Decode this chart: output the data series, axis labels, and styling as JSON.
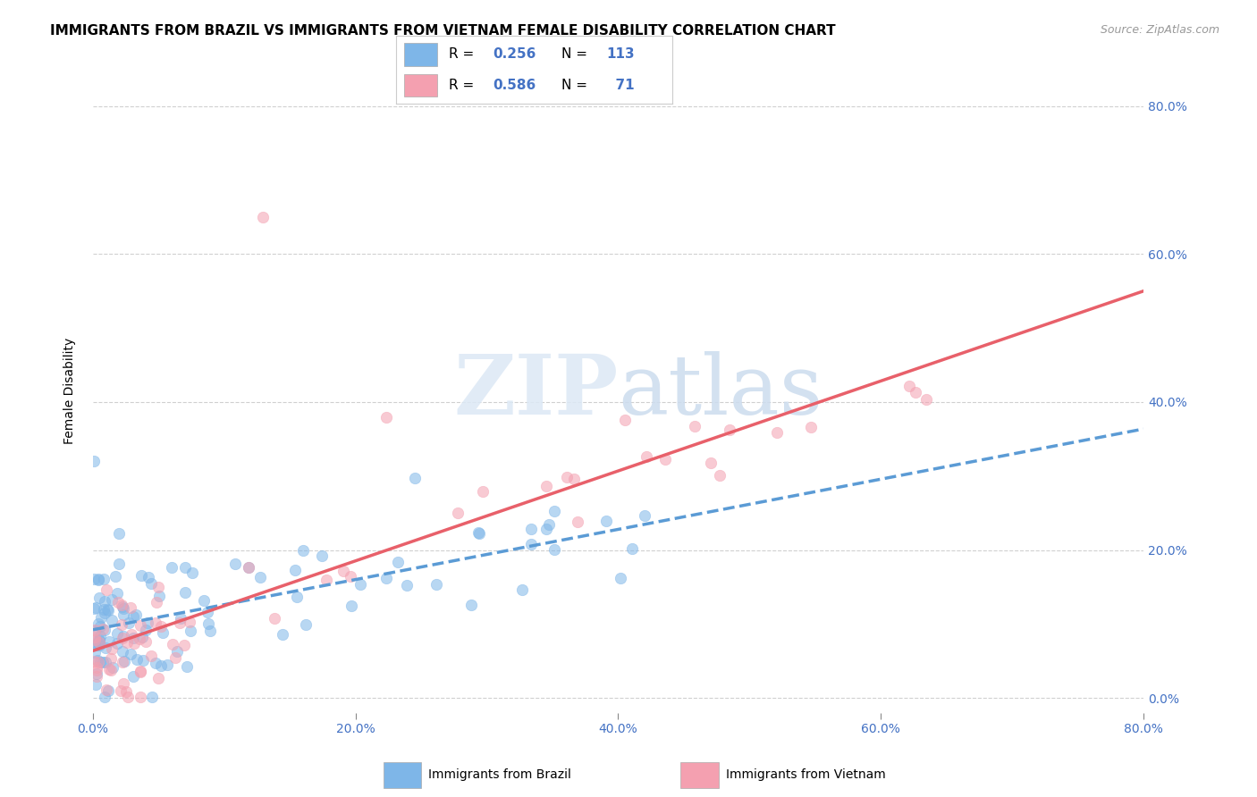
{
  "title": "IMMIGRANTS FROM BRAZIL VS IMMIGRANTS FROM VIETNAM FEMALE DISABILITY CORRELATION CHART",
  "source": "Source: ZipAtlas.com",
  "xlabel_brazil": "Immigrants from Brazil",
  "xlabel_vietnam": "Immigrants from Vietnam",
  "ylabel": "Female Disability",
  "xlim": [
    0,
    0.8
  ],
  "ylim": [
    -0.02,
    0.85
  ],
  "xtick_positions": [
    0.0,
    0.2,
    0.4,
    0.6,
    0.8
  ],
  "ytick_positions": [
    0.0,
    0.2,
    0.4,
    0.6,
    0.8
  ],
  "xtick_labels": [
    "0.0%",
    "20.0%",
    "40.0%",
    "60.0%",
    "80.0%"
  ],
  "ytick_labels": [
    "0.0%",
    "20.0%",
    "40.0%",
    "60.0%",
    "80.0%"
  ],
  "brazil_R": 0.256,
  "brazil_N": 113,
  "vietnam_R": 0.586,
  "vietnam_N": 71,
  "brazil_color": "#7EB6E8",
  "vietnam_color": "#F4A0B0",
  "brazil_line_color": "#5B9BD5",
  "vietnam_line_color": "#E8606A",
  "brazil_scatter_alpha": 0.55,
  "vietnam_scatter_alpha": 0.55,
  "marker_size": 80,
  "title_fontsize": 11,
  "axis_label_fontsize": 10,
  "tick_fontsize": 10,
  "legend_fontsize": 11,
  "source_fontsize": 9,
  "tick_color": "#4472C4",
  "grid_color": "#D0D0D0",
  "brazil_line_start_x": 0.0,
  "brazil_line_end_x": 0.8,
  "vietnam_line_start_x": 0.0,
  "vietnam_line_end_x": 0.8
}
